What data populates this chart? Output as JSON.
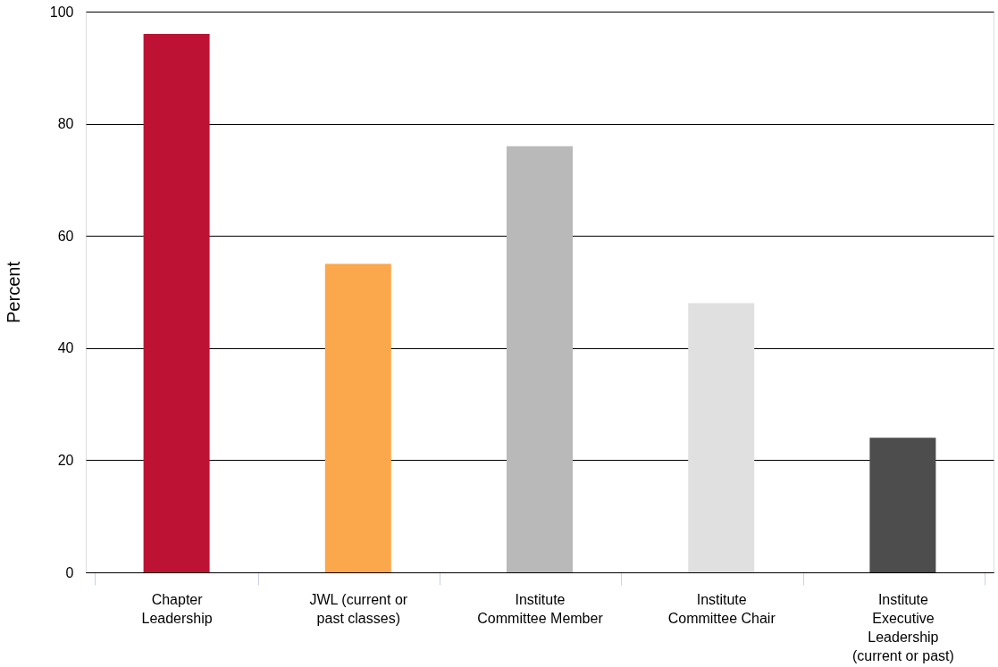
{
  "chart_data": {
    "type": "bar",
    "ylabel": "Percent",
    "categories": [
      "Chapter Leadership",
      "JWL (current or past classes)",
      "Institute Committee Member",
      "Institute Committee Chair",
      "Institute Executive Leadership (current or past)"
    ],
    "values": [
      96,
      55,
      76,
      48,
      24
    ],
    "colors": [
      "#be1235",
      "#fba84c",
      "#b9b9b9",
      "#e0e0e0",
      "#4d4d4d"
    ],
    "ylim": [
      0,
      100
    ],
    "yticks": [
      0,
      20,
      40,
      60,
      80,
      100
    ],
    "grid": "y"
  }
}
